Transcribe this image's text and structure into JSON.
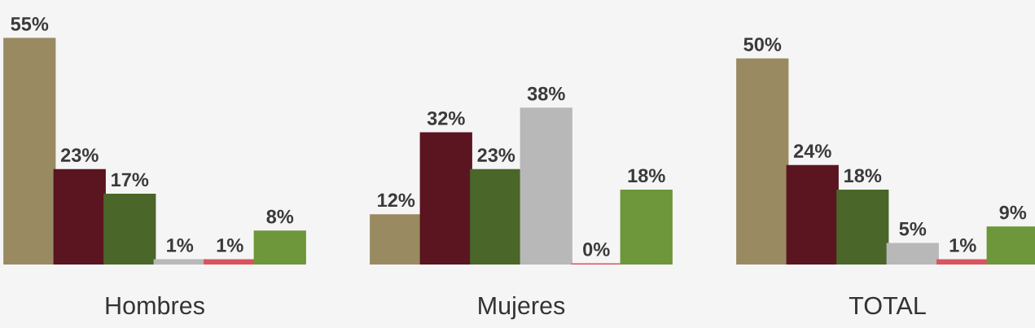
{
  "chart_data": {
    "type": "bar",
    "categories": [
      "Hombres",
      "Mujeres",
      "TOTAL"
    ],
    "series": [
      {
        "color": "#998a62",
        "values": [
          55,
          12,
          50
        ],
        "value_labels": [
          "55%",
          "12%",
          "50%"
        ]
      },
      {
        "color": "#5a1520",
        "values": [
          23,
          32,
          24
        ],
        "value_labels": [
          "23%",
          "32%",
          "24%"
        ]
      },
      {
        "color": "#4a6628",
        "values": [
          17,
          23,
          18
        ],
        "value_labels": [
          "17%",
          "23%",
          "18%"
        ]
      },
      {
        "color": "#b8b8b8",
        "values": [
          1,
          38,
          5
        ],
        "value_labels": [
          "1%",
          "38%",
          "5%"
        ]
      },
      {
        "color": "#d9545f",
        "values": [
          1,
          0,
          1
        ],
        "value_labels": [
          "1%",
          "0%",
          "1%"
        ]
      },
      {
        "color": "#6e963a",
        "values": [
          8,
          18,
          9
        ],
        "value_labels": [
          "8%",
          "18%",
          "9%"
        ]
      }
    ],
    "grid": false,
    "legend": false
  }
}
